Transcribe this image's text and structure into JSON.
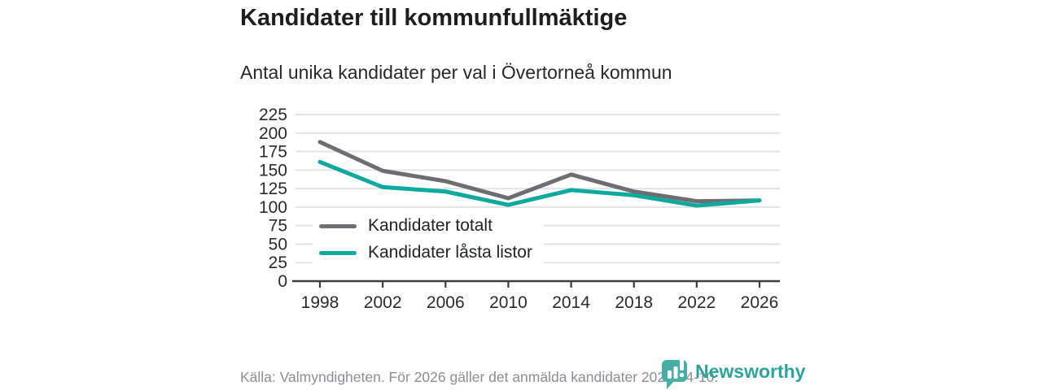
{
  "header": {
    "title": "Kandidater till kommunfullmäktige",
    "subtitle": "Antal unika kandidater per val i Övertorneå kommun"
  },
  "footer": {
    "source": "Källa: Valmyndigheten. För 2026 gäller det anmälda kandidater 2026-04-10.",
    "brand": "Newsworthy"
  },
  "colors": {
    "series_total": "#6d6d72",
    "series_locked": "#0ba99e",
    "grid": "#e3e3e5",
    "axis": "#3c3c3e",
    "tick_label": "#2b2b2e",
    "brand_text": "#2da49b",
    "brand_icon": "#45aea5"
  },
  "chart_data": {
    "type": "line",
    "title": "Kandidater till kommunfullmäktige",
    "subtitle": "Antal unika kandidater per val i Övertorneå kommun",
    "x": [
      1998,
      2002,
      2006,
      2010,
      2014,
      2018,
      2022,
      2026
    ],
    "series": [
      {
        "name": "Kandidater totalt",
        "color": "#6d6d72",
        "values": [
          188,
          149,
          135,
          112,
          144,
          121,
          108,
          109
        ]
      },
      {
        "name": "Kandidater låsta listor",
        "color": "#0ba99e",
        "values": [
          161,
          127,
          121,
          103,
          123,
          116,
          102,
          109
        ]
      }
    ],
    "ylim": [
      0,
      225
    ],
    "ytick_step": 25,
    "xlabel": "",
    "ylabel": "",
    "grid": true,
    "legend_position": "inside-bottom-left"
  }
}
